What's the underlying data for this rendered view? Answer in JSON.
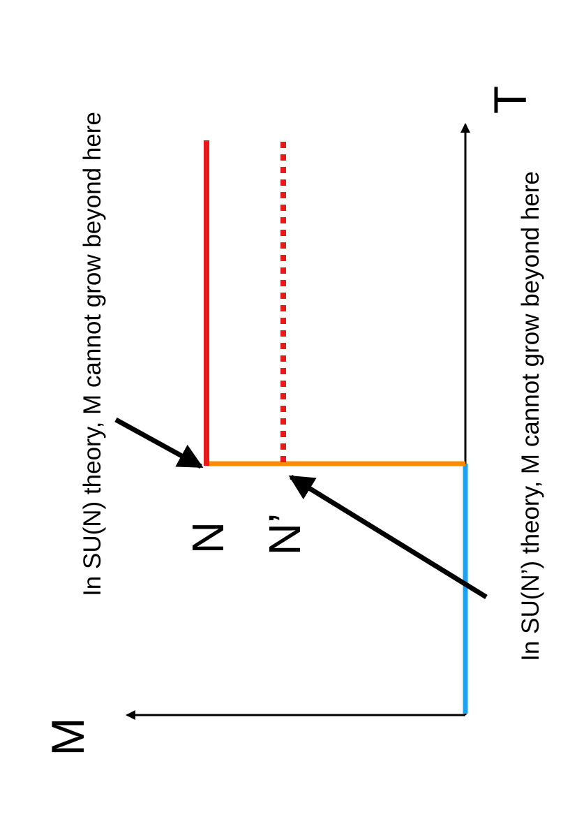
{
  "axes": {
    "x_label": "T",
    "y_label": "M"
  },
  "levels": {
    "n_label": "N",
    "n_prime_label": "N’"
  },
  "annotations": {
    "su_n": "In SU(N) theory, M cannot grow beyond here",
    "su_n_prime": "In SU(N’) theory, M cannot grow beyond here"
  },
  "colors": {
    "axis": "#000000",
    "low_segment": "#1da1f2",
    "rise_segment": "#ff8c00",
    "n_plateau": "#e8191a",
    "n_prime_plateau": "#e8191a",
    "arrows": "#000000"
  }
}
